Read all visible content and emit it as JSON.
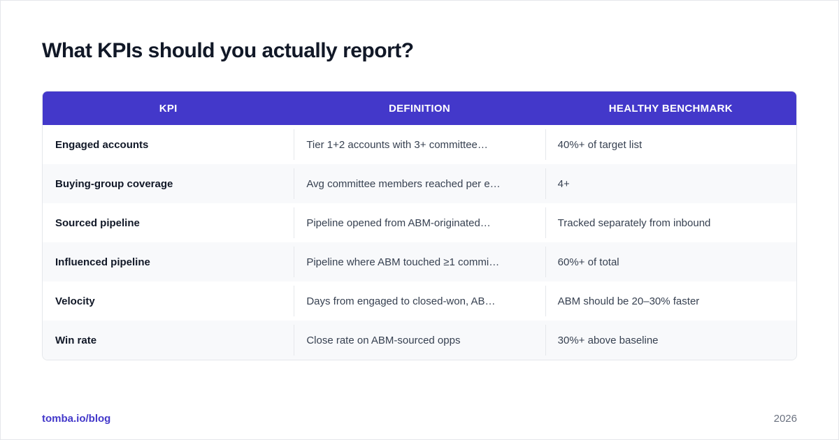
{
  "title": "What KPIs should you actually report?",
  "table": {
    "headers": [
      "KPI",
      "DEFINITION",
      "HEALTHY BENCHMARK"
    ],
    "rows": [
      {
        "kpi": "Engaged accounts",
        "definition": "Tier 1+2 accounts with 3+ committee…",
        "benchmark": "40%+ of target list"
      },
      {
        "kpi": "Buying-group coverage",
        "definition": "Avg committee members reached per e…",
        "benchmark": "4+"
      },
      {
        "kpi": "Sourced pipeline",
        "definition": "Pipeline opened from ABM-originated…",
        "benchmark": "Tracked separately from inbound"
      },
      {
        "kpi": "Influenced pipeline",
        "definition": "Pipeline where ABM touched ≥1 commi…",
        "benchmark": "60%+ of total"
      },
      {
        "kpi": "Velocity",
        "definition": "Days from engaged to closed-won, AB…",
        "benchmark": "ABM should be 20–30% faster"
      },
      {
        "kpi": "Win rate",
        "definition": "Close rate on ABM-sourced opps",
        "benchmark": "30%+ above baseline"
      }
    ]
  },
  "footer": {
    "link": "tomba.io/blog",
    "year": "2026"
  },
  "colors": {
    "accent": "#4338ca",
    "title": "#111827",
    "row_alt": "#f8f9fb"
  }
}
